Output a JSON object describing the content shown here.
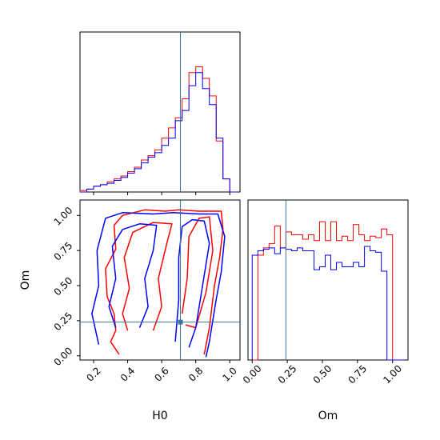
{
  "chart_data": {
    "type": "corner",
    "parameters": [
      "H0",
      "Om"
    ],
    "truths": {
      "H0": 0.71,
      "Om": 0.24
    },
    "colors": {
      "series_a": "#ff0000",
      "series_b": "#0000ff",
      "truth": "#3a76a0"
    },
    "hist_H0": {
      "x_range": [
        0.12,
        1.06
      ],
      "bins": [
        0.12,
        0.16,
        0.2,
        0.24,
        0.28,
        0.32,
        0.36,
        0.4,
        0.44,
        0.48,
        0.52,
        0.56,
        0.6,
        0.64,
        0.68,
        0.72,
        0.76,
        0.8,
        0.84,
        0.88,
        0.92,
        0.96,
        1.0,
        1.04
      ],
      "series": [
        {
          "values": [
            0.01,
            0.02,
            0.04,
            0.05,
            0.07,
            0.09,
            0.11,
            0.14,
            0.17,
            0.22,
            0.25,
            0.29,
            0.37,
            0.44,
            0.51,
            0.64,
            0.82,
            0.86,
            0.78,
            0.66,
            0.35,
            0.09,
            0.0
          ]
        },
        {
          "values": [
            0.0,
            0.02,
            0.04,
            0.05,
            0.06,
            0.08,
            0.1,
            0.13,
            0.16,
            0.2,
            0.24,
            0.27,
            0.32,
            0.37,
            0.49,
            0.56,
            0.73,
            0.82,
            0.71,
            0.6,
            0.37,
            0.09,
            0.0
          ]
        }
      ]
    },
    "hist_Om": {
      "x_range": [
        -0.03,
        1.11
      ],
      "bins": [
        0.0,
        0.04,
        0.08,
        0.12,
        0.16,
        0.2,
        0.24,
        0.28,
        0.32,
        0.36,
        0.4,
        0.44,
        0.48,
        0.52,
        0.56,
        0.6,
        0.64,
        0.68,
        0.72,
        0.76,
        0.8,
        0.84,
        0.88,
        0.92,
        0.96,
        1.0,
        1.04,
        1.08
      ],
      "series": [
        {
          "values": [
            0.0,
            0.72,
            0.77,
            0.8,
            0.92,
            0.77,
            0.88,
            0.86,
            0.86,
            0.83,
            0.86,
            0.82,
            0.95,
            0.82,
            0.95,
            0.82,
            0.85,
            0.82,
            0.93,
            0.86,
            0.82,
            0.85,
            0.84,
            0.9,
            0.86,
            0.0,
            0.0
          ]
        },
        {
          "values": [
            0.72,
            0.75,
            0.76,
            0.77,
            0.73,
            0.77,
            0.76,
            0.75,
            0.77,
            0.75,
            0.75,
            0.62,
            0.64,
            0.72,
            0.62,
            0.67,
            0.64,
            0.64,
            0.67,
            0.64,
            0.78,
            0.75,
            0.74,
            0.61,
            0.0,
            0.0,
            0.0
          ]
        }
      ]
    },
    "joint": {
      "x_range": [
        0.12,
        1.06
      ],
      "y_range": [
        -0.03,
        1.11
      ],
      "contours": [
        {
          "series": 0,
          "points": [
            [
              0.35,
              0.01
            ],
            [
              0.3,
              0.1
            ],
            [
              0.33,
              0.18
            ],
            [
              0.32,
              0.3
            ],
            [
              0.28,
              0.42
            ],
            [
              0.27,
              0.62
            ],
            [
              0.33,
              0.76
            ],
            [
              0.32,
              0.93
            ],
            [
              0.37,
              1.0
            ],
            [
              0.5,
              1.04
            ],
            [
              0.62,
              1.03
            ],
            [
              0.7,
              1.04
            ],
            [
              0.82,
              1.03
            ],
            [
              0.95,
              1.03
            ],
            [
              0.96,
              0.9
            ],
            [
              0.94,
              0.7
            ],
            [
              0.91,
              0.5
            ],
            [
              0.88,
              0.2
            ],
            [
              0.85,
              0.01
            ]
          ]
        },
        {
          "series": 0,
          "points": [
            [
              0.4,
              0.18
            ],
            [
              0.37,
              0.3
            ],
            [
              0.41,
              0.48
            ],
            [
              0.38,
              0.7
            ],
            [
              0.43,
              0.88
            ],
            [
              0.55,
              0.95
            ],
            [
              0.66,
              0.94
            ],
            [
              0.63,
              0.8
            ],
            [
              0.58,
              0.55
            ],
            [
              0.6,
              0.35
            ],
            [
              0.55,
              0.18
            ]
          ]
        },
        {
          "series": 0,
          "points": [
            [
              0.72,
              0.3
            ],
            [
              0.75,
              0.55
            ],
            [
              0.76,
              0.85
            ],
            [
              0.82,
              0.98
            ],
            [
              0.88,
              0.99
            ],
            [
              0.9,
              0.75
            ],
            [
              0.86,
              0.45
            ],
            [
              0.8,
              0.2
            ],
            [
              0.74,
              0.22
            ]
          ]
        },
        {
          "series": 1,
          "points": [
            [
              0.23,
              0.08
            ],
            [
              0.19,
              0.3
            ],
            [
              0.23,
              0.5
            ],
            [
              0.22,
              0.75
            ],
            [
              0.27,
              0.98
            ],
            [
              0.37,
              1.02
            ],
            [
              0.55,
              1.01
            ],
            [
              0.67,
              1.02
            ],
            [
              0.82,
              1.01
            ],
            [
              0.93,
              1.01
            ],
            [
              0.97,
              0.85
            ],
            [
              0.95,
              0.6
            ],
            [
              0.92,
              0.4
            ],
            [
              0.88,
              0.1
            ],
            [
              0.86,
              -0.01
            ]
          ]
        },
        {
          "series": 1,
          "points": [
            [
              0.33,
              0.2
            ],
            [
              0.29,
              0.35
            ],
            [
              0.33,
              0.55
            ],
            [
              0.31,
              0.78
            ],
            [
              0.37,
              0.9
            ],
            [
              0.47,
              0.94
            ],
            [
              0.57,
              0.93
            ],
            [
              0.55,
              0.75
            ],
            [
              0.5,
              0.55
            ],
            [
              0.52,
              0.35
            ],
            [
              0.47,
              0.2
            ]
          ]
        },
        {
          "series": 1,
          "points": [
            [
              0.68,
              0.1
            ],
            [
              0.7,
              0.4
            ],
            [
              0.7,
              0.7
            ],
            [
              0.72,
              0.92
            ],
            [
              0.78,
              0.97
            ],
            [
              0.85,
              0.96
            ],
            [
              0.88,
              0.8
            ],
            [
              0.84,
              0.5
            ],
            [
              0.8,
              0.2
            ],
            [
              0.76,
              0.06
            ]
          ]
        }
      ]
    },
    "xticks_H0": [
      0.2,
      0.4,
      0.6,
      0.8,
      1.0
    ],
    "xtick_labels_H0": [
      "0.2",
      "0.4",
      "0.6",
      "0.8",
      "1.0"
    ],
    "yticks_Om": [
      0.0,
      0.25,
      0.5,
      0.75,
      1.0
    ],
    "ytick_labels_Om": [
      "0.00",
      "0.25",
      "0.50",
      "0.75",
      "1.00"
    ],
    "xlabel_H0": "H0",
    "xlabel_Om": "Om",
    "ylabel_joint": "Om"
  }
}
